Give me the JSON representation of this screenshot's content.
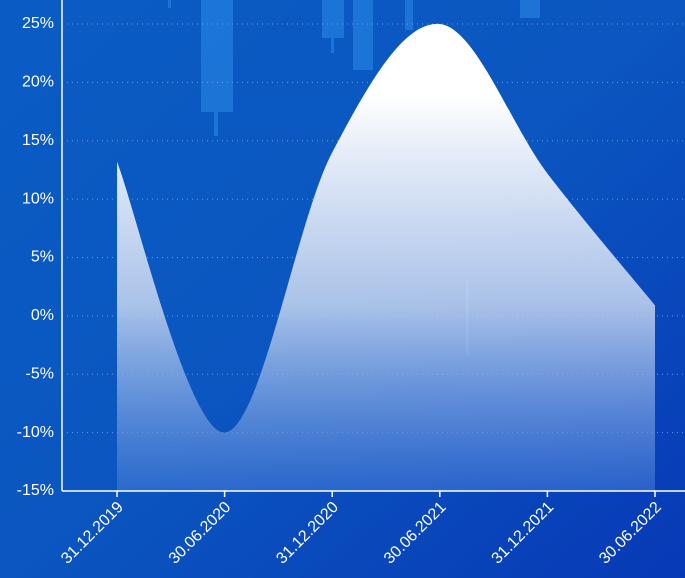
{
  "chart_data": {
    "type": "area",
    "categories": [
      "31.12.2019",
      "30.06.2020",
      "31.12.2020",
      "30.06.2021",
      "31.12.2021",
      "30.06.2022"
    ],
    "values": [
      13.2,
      -10,
      14,
      25,
      12.2,
      0.9
    ],
    "color": "#ffffff",
    "ylim": [
      -15,
      25
    ],
    "yticks": [
      {
        "value": -15,
        "label": "-15%"
      },
      {
        "value": -10,
        "label": "-10%"
      },
      {
        "value": -5,
        "label": "-5%"
      },
      {
        "value": 0,
        "label": "0%"
      },
      {
        "value": 5,
        "label": "5%"
      },
      {
        "value": 10,
        "label": "10%"
      },
      {
        "value": 15,
        "label": "15%"
      },
      {
        "value": 20,
        "label": "20%"
      },
      {
        "value": 25,
        "label": "25%"
      }
    ],
    "grid": true
  }
}
